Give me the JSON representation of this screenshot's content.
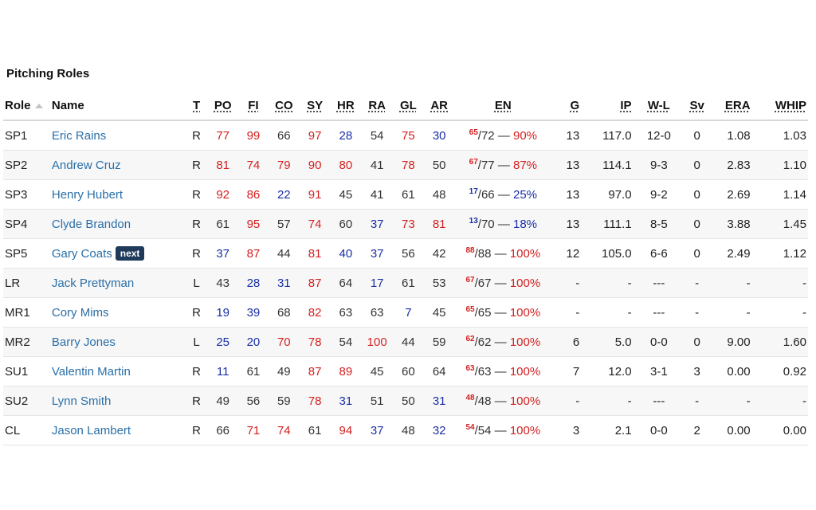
{
  "section_title": "Pitching Roles",
  "headers": {
    "role": "Role",
    "name": "Name",
    "t": "T",
    "po": "PO",
    "fi": "FI",
    "co": "CO",
    "sy": "SY",
    "hr": "HR",
    "ra": "RA",
    "gl": "GL",
    "ar": "AR",
    "en": "EN",
    "g": "G",
    "ip": "IP",
    "wl": "W-L",
    "sv": "Sv",
    "era": "ERA",
    "whip": "WHIP"
  },
  "colors": {
    "high": "#d42020",
    "low": "#1a2fa6",
    "normal": "#333333",
    "link": "#2a6fa8",
    "badge": "#1f3a5a"
  },
  "rows": [
    {
      "role": "SP1",
      "name": "Eric Rains",
      "badge": "",
      "t": "R",
      "po": "77",
      "fi": "99",
      "co": "66",
      "sy": "97",
      "hr": "28",
      "ra": "54",
      "gl": "75",
      "ar": "30",
      "en_cur": "65",
      "en_max": "/72 — ",
      "en_pct": "90%",
      "g": "13",
      "ip": "117.0",
      "wl": "12-0",
      "sv": "0",
      "era": "1.08",
      "whip": "1.03",
      "colors": {
        "po": "red",
        "fi": "red",
        "co": "plain",
        "sy": "red",
        "hr": "blue",
        "ra": "plain",
        "gl": "red",
        "ar": "blue",
        "en": "red"
      }
    },
    {
      "role": "SP2",
      "name": "Andrew Cruz",
      "badge": "",
      "t": "R",
      "po": "81",
      "fi": "74",
      "co": "79",
      "sy": "90",
      "hr": "80",
      "ra": "41",
      "gl": "78",
      "ar": "50",
      "en_cur": "67",
      "en_max": "/77 — ",
      "en_pct": "87%",
      "g": "13",
      "ip": "114.1",
      "wl": "9-3",
      "sv": "0",
      "era": "2.83",
      "whip": "1.10",
      "colors": {
        "po": "red",
        "fi": "red",
        "co": "red",
        "sy": "red",
        "hr": "red",
        "ra": "plain",
        "gl": "red",
        "ar": "plain",
        "en": "red"
      }
    },
    {
      "role": "SP3",
      "name": "Henry Hubert",
      "badge": "",
      "t": "R",
      "po": "92",
      "fi": "86",
      "co": "22",
      "sy": "91",
      "hr": "45",
      "ra": "41",
      "gl": "61",
      "ar": "48",
      "en_cur": "17",
      "en_max": "/66 — ",
      "en_pct": "25%",
      "g": "13",
      "ip": "97.0",
      "wl": "9-2",
      "sv": "0",
      "era": "2.69",
      "whip": "1.14",
      "colors": {
        "po": "red",
        "fi": "red",
        "co": "blue",
        "sy": "red",
        "hr": "plain",
        "ra": "plain",
        "gl": "plain",
        "ar": "plain",
        "en": "blue"
      }
    },
    {
      "role": "SP4",
      "name": "Clyde Brandon",
      "badge": "",
      "t": "R",
      "po": "61",
      "fi": "95",
      "co": "57",
      "sy": "74",
      "hr": "60",
      "ra": "37",
      "gl": "73",
      "ar": "81",
      "en_cur": "13",
      "en_max": "/70 — ",
      "en_pct": "18%",
      "g": "13",
      "ip": "111.1",
      "wl": "8-5",
      "sv": "0",
      "era": "3.88",
      "whip": "1.45",
      "colors": {
        "po": "plain",
        "fi": "red",
        "co": "plain",
        "sy": "red",
        "hr": "plain",
        "ra": "blue",
        "gl": "red",
        "ar": "red",
        "en": "blue"
      }
    },
    {
      "role": "SP5",
      "name": "Gary Coats",
      "badge": "next",
      "t": "R",
      "po": "37",
      "fi": "87",
      "co": "44",
      "sy": "81",
      "hr": "40",
      "ra": "37",
      "gl": "56",
      "ar": "42",
      "en_cur": "88",
      "en_max": "/88 — ",
      "en_pct": "100%",
      "g": "12",
      "ip": "105.0",
      "wl": "6-6",
      "sv": "0",
      "era": "2.49",
      "whip": "1.12",
      "colors": {
        "po": "blue",
        "fi": "red",
        "co": "plain",
        "sy": "red",
        "hr": "blue",
        "ra": "blue",
        "gl": "plain",
        "ar": "plain",
        "en": "red"
      }
    },
    {
      "role": "LR",
      "name": "Jack Prettyman",
      "badge": "",
      "t": "L",
      "po": "43",
      "fi": "28",
      "co": "31",
      "sy": "87",
      "hr": "64",
      "ra": "17",
      "gl": "61",
      "ar": "53",
      "en_cur": "67",
      "en_max": "/67 — ",
      "en_pct": "100%",
      "g": "-",
      "ip": "-",
      "wl": "---",
      "sv": "-",
      "era": "-",
      "whip": "-",
      "colors": {
        "po": "plain",
        "fi": "blue",
        "co": "blue",
        "sy": "red",
        "hr": "plain",
        "ra": "blue",
        "gl": "plain",
        "ar": "plain",
        "en": "red"
      }
    },
    {
      "role": "MR1",
      "name": "Cory Mims",
      "badge": "",
      "t": "R",
      "po": "19",
      "fi": "39",
      "co": "68",
      "sy": "82",
      "hr": "63",
      "ra": "63",
      "gl": "7",
      "ar": "45",
      "en_cur": "65",
      "en_max": "/65 — ",
      "en_pct": "100%",
      "g": "-",
      "ip": "-",
      "wl": "---",
      "sv": "-",
      "era": "-",
      "whip": "-",
      "colors": {
        "po": "blue",
        "fi": "blue",
        "co": "plain",
        "sy": "red",
        "hr": "plain",
        "ra": "plain",
        "gl": "blue",
        "ar": "plain",
        "en": "red"
      }
    },
    {
      "role": "MR2",
      "name": "Barry Jones",
      "badge": "",
      "t": "L",
      "po": "25",
      "fi": "20",
      "co": "70",
      "sy": "78",
      "hr": "54",
      "ra": "100",
      "gl": "44",
      "ar": "59",
      "en_cur": "62",
      "en_max": "/62 — ",
      "en_pct": "100%",
      "g": "6",
      "ip": "5.0",
      "wl": "0-0",
      "sv": "0",
      "era": "9.00",
      "whip": "1.60",
      "colors": {
        "po": "blue",
        "fi": "blue",
        "co": "red",
        "sy": "red",
        "hr": "plain",
        "ra": "red",
        "gl": "plain",
        "ar": "plain",
        "en": "red"
      }
    },
    {
      "role": "SU1",
      "name": "Valentin Martin",
      "badge": "",
      "t": "R",
      "po": "11",
      "fi": "61",
      "co": "49",
      "sy": "87",
      "hr": "89",
      "ra": "45",
      "gl": "60",
      "ar": "64",
      "en_cur": "63",
      "en_max": "/63 — ",
      "en_pct": "100%",
      "g": "7",
      "ip": "12.0",
      "wl": "3-1",
      "sv": "3",
      "era": "0.00",
      "whip": "0.92",
      "colors": {
        "po": "blue",
        "fi": "plain",
        "co": "plain",
        "sy": "red",
        "hr": "red",
        "ra": "plain",
        "gl": "plain",
        "ar": "plain",
        "en": "red"
      }
    },
    {
      "role": "SU2",
      "name": "Lynn Smith",
      "badge": "",
      "t": "R",
      "po": "49",
      "fi": "56",
      "co": "59",
      "sy": "78",
      "hr": "31",
      "ra": "51",
      "gl": "50",
      "ar": "31",
      "en_cur": "48",
      "en_max": "/48 — ",
      "en_pct": "100%",
      "g": "-",
      "ip": "-",
      "wl": "---",
      "sv": "-",
      "era": "-",
      "whip": "-",
      "colors": {
        "po": "plain",
        "fi": "plain",
        "co": "plain",
        "sy": "red",
        "hr": "blue",
        "ra": "plain",
        "gl": "plain",
        "ar": "blue",
        "en": "red"
      }
    },
    {
      "role": "CL",
      "name": "Jason Lambert",
      "badge": "",
      "t": "R",
      "po": "66",
      "fi": "71",
      "co": "74",
      "sy": "61",
      "hr": "94",
      "ra": "37",
      "gl": "48",
      "ar": "32",
      "en_cur": "54",
      "en_max": "/54 — ",
      "en_pct": "100%",
      "g": "3",
      "ip": "2.1",
      "wl": "0-0",
      "sv": "2",
      "era": "0.00",
      "whip": "0.00",
      "colors": {
        "po": "plain",
        "fi": "red",
        "co": "red",
        "sy": "plain",
        "hr": "red",
        "ra": "blue",
        "gl": "plain",
        "ar": "blue",
        "en": "red"
      }
    }
  ]
}
